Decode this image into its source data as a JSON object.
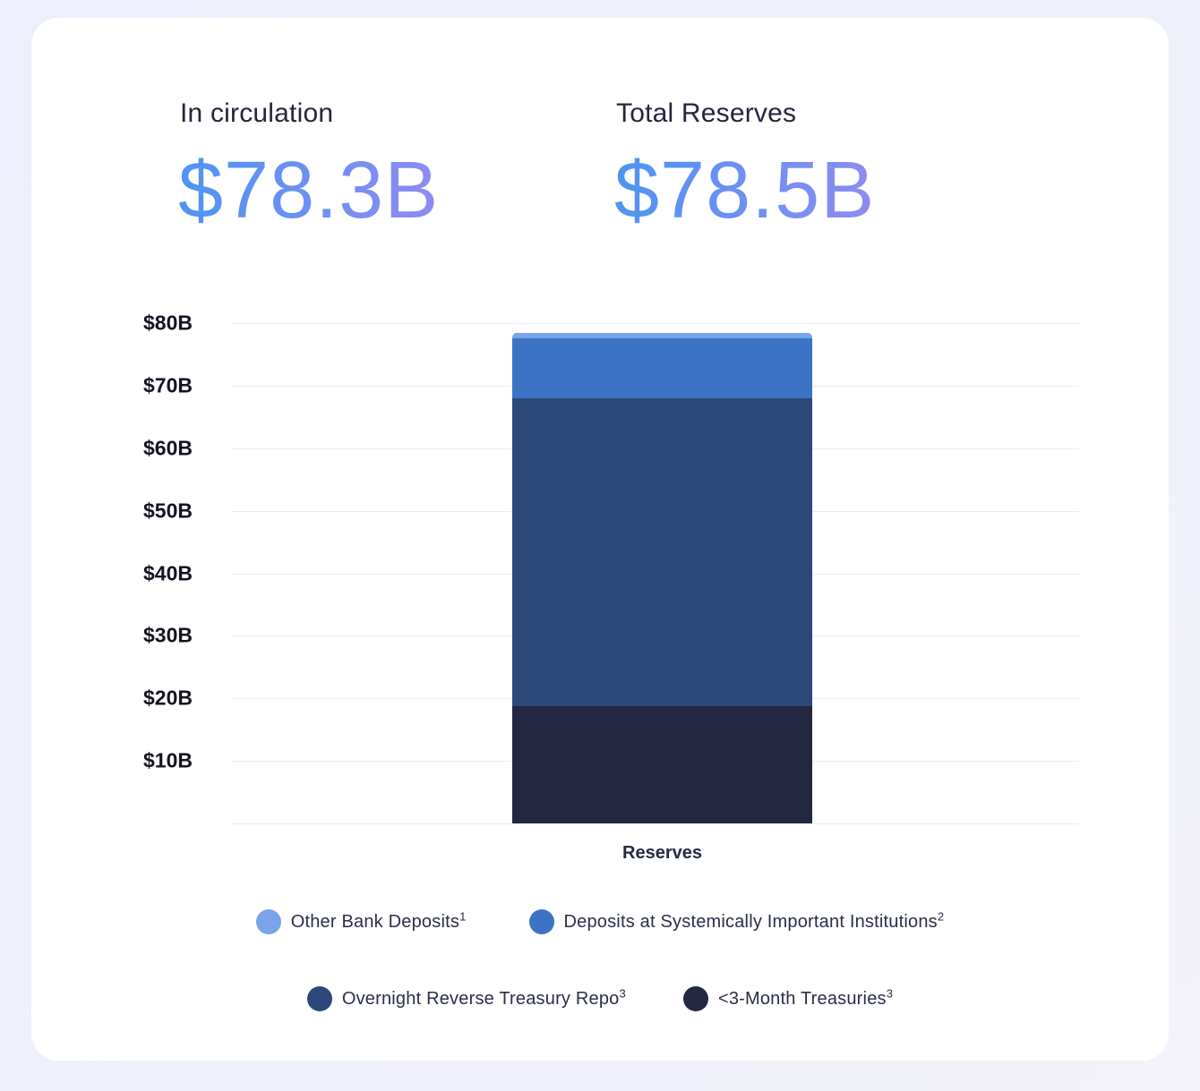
{
  "page": {
    "background": "#EFF1FB",
    "card_background": "#FFFFFF"
  },
  "accent": {
    "gradient_start": "#4D95F2",
    "gradient_end": "#8F8BF2"
  },
  "stats": [
    {
      "label": "In circulation",
      "value": "$78.3B"
    },
    {
      "label": "Total Reserves",
      "value": "$78.5B"
    }
  ],
  "chart_data": {
    "type": "bar",
    "stacked": true,
    "title": "",
    "categories": [
      "Reserves"
    ],
    "xlabel": "Reserves",
    "ylabel": "",
    "ylim": [
      0,
      80
    ],
    "ytick_step": 10,
    "ytick_labels": [
      "$80B",
      "$70B",
      "$60B",
      "$50B",
      "$40B",
      "$30B",
      "$20B",
      "$10B"
    ],
    "grid": true,
    "gridline_color": "#ECECEE",
    "legend_position": "bottom",
    "total": 78.5,
    "series": [
      {
        "name": "Other Bank Deposits",
        "superscript": "1",
        "color": "#79A4EA",
        "values": [
          0.9
        ]
      },
      {
        "name": "Deposits at Systemically Important Institutions",
        "superscript": "2",
        "color": "#3D73C4",
        "values": [
          9.6
        ]
      },
      {
        "name": "Overnight Reverse Treasury Repo",
        "superscript": "3",
        "color": "#2B4878",
        "values": [
          49.3
        ]
      },
      {
        "name": "<3-Month Treasuries",
        "superscript": "3",
        "color": "#232742",
        "values": [
          18.7
        ]
      }
    ]
  }
}
